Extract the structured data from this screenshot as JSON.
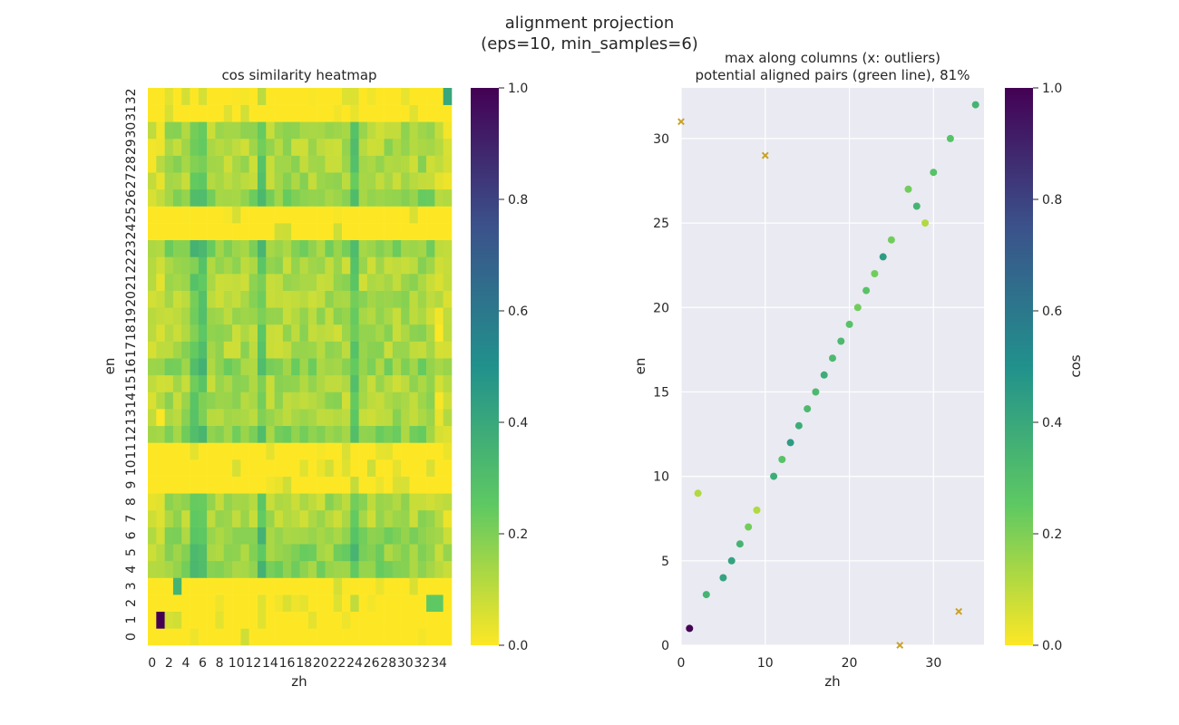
{
  "figure": {
    "title_line1": "alignment projection",
    "title_line2": "(eps=10, min_samples=6)"
  },
  "colors": {
    "viridis": [
      "#fde725",
      "#5ec962",
      "#21918c",
      "#3b528b",
      "#440154"
    ],
    "axes_bg": "#eaeaf2",
    "grid": "#ffffff",
    "outlier": "#c9a227"
  },
  "chart_data": [
    {
      "type": "heatmap",
      "title": "cos similarity heatmap",
      "xlabel": "zh",
      "ylabel": "en",
      "n_cols": 36,
      "n_rows": 33,
      "x_tick_labels": [
        "0",
        "2",
        "4",
        "6",
        "8",
        "10",
        "12",
        "14",
        "16",
        "18",
        "20",
        "22",
        "24",
        "26",
        "28",
        "30",
        "32",
        "34"
      ],
      "y_tick_labels": [
        "0",
        "1",
        "2",
        "3",
        "4",
        "5",
        "6",
        "7",
        "8",
        "9",
        "10",
        "11",
        "12",
        "13",
        "14",
        "15",
        "16",
        "17",
        "18",
        "19",
        "20",
        "21",
        "22",
        "23",
        "24",
        "25",
        "26",
        "27",
        "28",
        "29",
        "30",
        "31",
        "32"
      ],
      "colorbar": {
        "range": [
          0.0,
          1.0
        ],
        "ticks": [
          "0.0",
          "0.2",
          "0.4",
          "0.6",
          "0.8",
          "1.0"
        ]
      },
      "notable_values": [
        {
          "zh": 1,
          "en": 1,
          "value": 1.0
        },
        {
          "zh": 35,
          "en": 32,
          "value": 0.4
        },
        {
          "zh": 3,
          "en": 3,
          "value": 0.35
        },
        {
          "zh": 33,
          "en": 2,
          "value": 0.25
        },
        {
          "zh": 34,
          "en": 2,
          "value": 0.25
        }
      ],
      "strong_columns": [
        5,
        6,
        13,
        24
      ],
      "strong_rows": [
        4,
        5,
        6,
        12,
        16,
        23,
        26
      ],
      "weak_rows": [
        0,
        1,
        2,
        3,
        9,
        10,
        11,
        24,
        25,
        31,
        32
      ]
    },
    {
      "type": "scatter",
      "title_line1": "max along columns (x: outliers)",
      "title_line2": "potential aligned pairs (green line), 81%",
      "xlabel": "zh",
      "ylabel": "en",
      "xlim": [
        0,
        36
      ],
      "ylim": [
        0,
        33
      ],
      "x_ticks": [
        "0",
        "10",
        "20",
        "30"
      ],
      "y_ticks": [
        "0",
        "5",
        "10",
        "15",
        "20",
        "25",
        "30"
      ],
      "colorbar": {
        "label": "cos",
        "range": [
          0.0,
          1.0
        ],
        "ticks": [
          "0.0",
          "0.2",
          "0.4",
          "0.6",
          "0.8",
          "1.0"
        ]
      },
      "points": [
        {
          "x": 1,
          "y": 1,
          "cos": 1.0
        },
        {
          "x": 2,
          "y": 9,
          "cos": 0.12
        },
        {
          "x": 3,
          "y": 3,
          "cos": 0.35
        },
        {
          "x": 5,
          "y": 4,
          "cos": 0.42
        },
        {
          "x": 6,
          "y": 5,
          "cos": 0.42
        },
        {
          "x": 7,
          "y": 6,
          "cos": 0.35
        },
        {
          "x": 8,
          "y": 7,
          "cos": 0.22
        },
        {
          "x": 9,
          "y": 8,
          "cos": 0.12
        },
        {
          "x": 11,
          "y": 10,
          "cos": 0.38
        },
        {
          "x": 12,
          "y": 11,
          "cos": 0.28
        },
        {
          "x": 13,
          "y": 12,
          "cos": 0.45
        },
        {
          "x": 14,
          "y": 13,
          "cos": 0.38
        },
        {
          "x": 15,
          "y": 14,
          "cos": 0.32
        },
        {
          "x": 16,
          "y": 15,
          "cos": 0.32
        },
        {
          "x": 17,
          "y": 16,
          "cos": 0.38
        },
        {
          "x": 18,
          "y": 17,
          "cos": 0.32
        },
        {
          "x": 19,
          "y": 18,
          "cos": 0.32
        },
        {
          "x": 20,
          "y": 19,
          "cos": 0.28
        },
        {
          "x": 21,
          "y": 20,
          "cos": 0.22
        },
        {
          "x": 22,
          "y": 21,
          "cos": 0.28
        },
        {
          "x": 23,
          "y": 22,
          "cos": 0.22
        },
        {
          "x": 24,
          "y": 23,
          "cos": 0.45
        },
        {
          "x": 25,
          "y": 24,
          "cos": 0.22
        },
        {
          "x": 27,
          "y": 27,
          "cos": 0.22
        },
        {
          "x": 28,
          "y": 26,
          "cos": 0.35
        },
        {
          "x": 29,
          "y": 25,
          "cos": 0.12
        },
        {
          "x": 30,
          "y": 28,
          "cos": 0.28
        },
        {
          "x": 32,
          "y": 30,
          "cos": 0.28
        },
        {
          "x": 35,
          "y": 32,
          "cos": 0.35
        }
      ],
      "outliers": [
        {
          "x": 0,
          "y": 31
        },
        {
          "x": 10,
          "y": 29
        },
        {
          "x": 26,
          "y": 0
        },
        {
          "x": 33,
          "y": 2
        }
      ]
    }
  ]
}
